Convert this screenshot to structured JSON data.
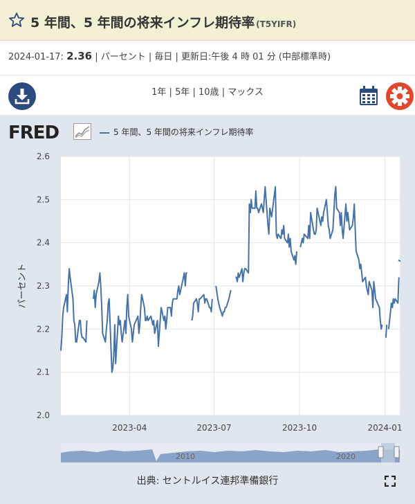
{
  "header": {
    "title": "5 年間、5 年間の将来インフレ期待率",
    "series_id": "(T5YIFR)"
  },
  "meta": {
    "date": "2024-01-17:",
    "value": "2.36",
    "rest": " | パーセント | 毎日 | 更新日:午後 4 時 01 分 (中部標準時)"
  },
  "toolbar": {
    "ranges": [
      "1年",
      "5年",
      "10歳",
      "マックス"
    ]
  },
  "chart": {
    "logo": "FRED",
    "source": "出典: セントルイス連邦準備銀行",
    "navigator_labels": [
      "2010",
      "2020"
    ],
    "colors": {
      "line": "#4572a7",
      "background": "#dfe6ee",
      "plot_bg": "#ffffff",
      "navigator_fill": "#8aa3c8"
    }
  },
  "chart_data": {
    "type": "line",
    "title": "",
    "ylabel": "パーセント",
    "xlabel": "",
    "ylim": [
      2.0,
      2.6
    ],
    "yticks": [
      "2.0",
      "2.1",
      "2.2",
      "2.3",
      "2.4",
      "2.5",
      "2.6"
    ],
    "xticks": [
      {
        "label": "2023-04",
        "date": "2023-04-01"
      },
      {
        "label": "2023-07",
        "date": "2023-07-01"
      },
      {
        "label": "2023-10",
        "date": "2023-10-01"
      },
      {
        "label": "2024-01",
        "date": "2024-01-01"
      }
    ],
    "xrange": [
      "2023-01-17",
      "2024-01-17"
    ],
    "series": [
      {
        "name": "5 年間、5 年間の将来インフレ期待率",
        "points": [
          [
            "2023-01-17",
            2.15
          ],
          [
            "2023-01-18",
            2.18
          ],
          [
            "2023-01-19",
            2.23
          ],
          [
            "2023-01-20",
            2.25
          ],
          [
            "2023-01-23",
            2.28
          ],
          [
            "2023-01-24",
            2.24
          ],
          [
            "2023-01-25",
            2.3
          ],
          [
            "2023-01-26",
            2.34
          ],
          [
            "2023-01-27",
            2.32
          ],
          [
            "2023-01-30",
            2.27
          ],
          [
            "2023-01-31",
            2.22
          ],
          [
            "2023-02-01",
            2.21
          ],
          [
            "2023-02-02",
            2.17
          ],
          [
            "2023-02-03",
            2.17
          ],
          [
            "2023-02-06",
            2.22
          ],
          [
            "2023-02-07",
            2.22
          ],
          [
            "2023-02-08",
            2.19
          ],
          [
            "2023-02-09",
            2.18
          ],
          [
            "2023-02-10",
            2.18
          ],
          [
            "2023-02-13",
            2.17
          ],
          [
            "2023-02-14",
            2.22
          ],
          [
            null,
            null
          ],
          [
            "2023-02-21",
            2.27
          ],
          [
            "2023-02-22",
            2.29
          ],
          [
            "2023-02-23",
            2.25
          ],
          [
            "2023-02-24",
            2.28
          ],
          [
            "2023-02-27",
            2.31
          ],
          [
            "2023-02-28",
            2.33
          ],
          [
            "2023-03-01",
            2.3
          ],
          [
            "2023-03-02",
            2.25
          ],
          [
            "2023-03-03",
            2.19
          ],
          [
            "2023-03-06",
            2.17
          ],
          [
            "2023-03-07",
            2.2
          ],
          [
            "2023-03-08",
            2.22
          ],
          [
            "2023-03-09",
            2.26
          ],
          [
            "2023-03-10",
            2.27
          ],
          [
            "2023-03-13",
            2.1
          ],
          [
            "2023-03-14",
            2.11
          ],
          [
            "2023-03-15",
            2.14
          ],
          [
            "2023-03-16",
            2.21
          ],
          [
            "2023-03-17",
            2.12
          ],
          [
            "2023-03-20",
            2.23
          ],
          [
            "2023-03-21",
            2.21
          ],
          [
            "2023-03-22",
            2.22
          ],
          [
            "2023-03-23",
            2.19
          ],
          [
            "2023-03-24",
            2.17
          ],
          [
            "2023-03-27",
            2.22
          ],
          [
            "2023-03-28",
            2.19
          ],
          [
            "2023-03-29",
            2.25
          ],
          [
            "2023-03-30",
            2.28
          ],
          [
            "2023-03-31",
            2.23
          ],
          [
            "2023-04-03",
            2.2
          ],
          [
            "2023-04-04",
            2.17
          ],
          [
            "2023-04-05",
            2.19
          ],
          [
            "2023-04-06",
            2.21
          ],
          [
            "2023-04-10",
            2.23
          ],
          [
            "2023-04-11",
            2.19
          ],
          [
            "2023-04-12",
            2.21
          ],
          [
            "2023-04-13",
            2.25
          ],
          [
            "2023-04-14",
            2.28
          ],
          [
            "2023-04-17",
            2.25
          ],
          [
            "2023-04-18",
            2.22
          ],
          [
            "2023-04-19",
            2.22
          ],
          [
            "2023-04-20",
            2.23
          ],
          [
            "2023-04-21",
            2.22
          ],
          [
            "2023-04-24",
            2.23
          ],
          [
            "2023-04-25",
            2.22
          ],
          [
            "2023-04-26",
            2.21
          ],
          [
            "2023-04-27",
            2.22
          ],
          [
            "2023-04-28",
            2.19
          ],
          [
            "2023-05-01",
            2.22
          ],
          [
            "2023-05-02",
            2.16
          ],
          [
            "2023-05-03",
            2.19
          ],
          [
            "2023-05-04",
            2.22
          ],
          [
            "2023-05-05",
            2.25
          ],
          [
            "2023-05-08",
            2.22
          ],
          [
            "2023-05-09",
            2.23
          ],
          [
            "2023-05-10",
            2.2
          ],
          [
            "2023-05-11",
            2.22
          ],
          [
            "2023-05-12",
            2.25
          ],
          [
            "2023-05-15",
            2.25
          ],
          [
            "2023-05-16",
            2.23
          ],
          [
            "2023-05-17",
            2.26
          ],
          [
            "2023-05-18",
            2.27
          ],
          [
            "2023-05-19",
            2.27
          ],
          [
            "2023-05-22",
            2.27
          ],
          [
            "2023-05-23",
            2.29
          ],
          [
            "2023-05-24",
            2.3
          ],
          [
            "2023-05-25",
            2.28
          ],
          [
            "2023-05-26",
            2.29
          ],
          [
            "2023-05-30",
            2.33
          ],
          [
            "2023-05-31",
            2.3
          ],
          [
            "2023-06-01",
            2.33
          ],
          [
            "2023-06-02",
            2.33
          ],
          [
            null,
            null
          ],
          [
            "2023-06-07",
            2.22
          ],
          [
            "2023-06-08",
            2.23
          ],
          [
            "2023-06-09",
            2.26
          ],
          [
            "2023-06-12",
            2.27
          ],
          [
            "2023-06-13",
            2.26
          ],
          [
            "2023-06-14",
            2.24
          ],
          [
            "2023-06-15",
            2.27
          ],
          [
            "2023-06-16",
            2.27
          ],
          [
            "2023-06-20",
            2.28
          ],
          [
            "2023-06-21",
            2.26
          ],
          [
            "2023-06-22",
            2.27
          ],
          [
            "2023-06-23",
            2.27
          ],
          [
            "2023-06-26",
            2.25
          ],
          [
            "2023-06-27",
            2.25
          ],
          [
            "2023-06-28",
            2.24
          ],
          [
            "2023-06-29",
            2.27
          ],
          [
            null,
            null
          ],
          [
            "2023-07-03",
            2.3
          ],
          [
            "2023-07-05",
            2.27
          ],
          [
            "2023-07-06",
            2.26
          ],
          [
            "2023-07-07",
            2.25
          ],
          [
            "2023-07-10",
            2.23
          ],
          [
            "2023-07-11",
            2.24
          ],
          [
            "2023-07-12",
            2.24
          ],
          [
            "2023-07-13",
            2.25
          ],
          [
            "2023-07-14",
            2.25
          ],
          [
            "2023-07-17",
            2.27
          ],
          [
            "2023-07-18",
            2.28
          ],
          [
            "2023-07-19",
            2.29
          ],
          [
            null,
            null
          ],
          [
            "2023-07-24",
            2.32
          ],
          [
            "2023-07-25",
            2.32
          ],
          [
            "2023-07-26",
            2.31
          ],
          [
            "2023-07-27",
            2.33
          ],
          [
            "2023-07-28",
            2.32
          ],
          [
            "2023-07-31",
            2.34
          ],
          [
            "2023-08-01",
            2.31
          ],
          [
            "2023-08-02",
            2.33
          ],
          [
            "2023-08-03",
            2.34
          ],
          [
            "2023-08-04",
            2.34
          ],
          [
            "2023-08-07",
            2.33
          ],
          [
            "2023-08-08",
            2.49
          ],
          [
            "2023-08-09",
            2.47
          ],
          [
            "2023-08-10",
            2.5
          ],
          [
            "2023-08-11",
            2.48
          ],
          [
            "2023-08-14",
            2.48
          ],
          [
            "2023-08-15",
            2.52
          ],
          [
            "2023-08-16",
            2.48
          ],
          [
            "2023-08-17",
            2.48
          ],
          [
            "2023-08-18",
            2.47
          ],
          [
            "2023-08-21",
            2.49
          ],
          [
            "2023-08-22",
            2.48
          ],
          [
            "2023-08-23",
            2.47
          ],
          [
            "2023-08-24",
            2.5
          ],
          [
            "2023-08-25",
            2.53
          ],
          [
            "2023-08-28",
            2.44
          ],
          [
            "2023-08-29",
            2.42
          ],
          [
            "2023-08-30",
            2.48
          ],
          [
            "2023-08-31",
            2.47
          ],
          [
            "2023-09-01",
            2.46
          ],
          [
            "2023-09-05",
            2.53
          ],
          [
            "2023-09-06",
            2.42
          ],
          [
            "2023-09-07",
            2.41
          ],
          [
            "2023-09-08",
            2.42
          ],
          [
            "2023-09-11",
            2.41
          ],
          [
            "2023-09-12",
            2.43
          ],
          [
            "2023-09-13",
            2.42
          ],
          [
            "2023-09-14",
            2.44
          ],
          [
            "2023-09-15",
            2.41
          ],
          [
            "2023-09-18",
            2.4
          ],
          [
            "2023-09-19",
            2.42
          ],
          [
            "2023-09-20",
            2.39
          ],
          [
            "2023-09-21",
            2.41
          ],
          [
            "2023-09-22",
            2.38
          ],
          [
            "2023-09-25",
            2.36
          ],
          [
            "2023-09-26",
            2.37
          ],
          [
            "2023-09-27",
            2.35
          ],
          [
            "2023-09-28",
            2.38
          ],
          [
            null,
            null
          ],
          [
            "2023-10-02",
            2.39
          ],
          [
            "2023-10-03",
            2.4
          ],
          [
            "2023-10-04",
            2.41
          ],
          [
            "2023-10-05",
            2.4
          ],
          [
            "2023-10-06",
            2.42
          ],
          [
            "2023-10-10",
            2.41
          ],
          [
            "2023-10-11",
            2.44
          ],
          [
            "2023-10-12",
            2.41
          ],
          [
            "2023-10-13",
            2.47
          ],
          [
            "2023-10-16",
            2.43
          ],
          [
            "2023-10-17",
            2.42
          ],
          [
            "2023-10-18",
            2.42
          ],
          [
            "2023-10-19",
            2.43
          ],
          [
            "2023-10-20",
            2.48
          ],
          [
            "2023-10-23",
            2.45
          ],
          [
            "2023-10-24",
            2.44
          ],
          [
            "2023-10-25",
            2.46
          ],
          [
            "2023-10-26",
            2.45
          ],
          [
            "2023-10-27",
            2.47
          ],
          [
            "2023-10-30",
            2.5
          ],
          [
            "2023-10-31",
            2.47
          ],
          [
            "2023-11-01",
            2.44
          ],
          [
            "2023-11-02",
            2.43
          ],
          [
            "2023-11-03",
            2.41
          ],
          [
            "2023-11-06",
            2.43
          ],
          [
            "2023-11-07",
            2.47
          ],
          [
            "2023-11-08",
            2.51
          ],
          [
            "2023-11-09",
            2.53
          ],
          [
            "2023-11-10",
            2.48
          ],
          [
            "2023-11-13",
            2.47
          ],
          [
            "2023-11-14",
            2.44
          ],
          [
            "2023-11-15",
            2.47
          ],
          [
            "2023-11-16",
            2.43
          ],
          [
            "2023-11-17",
            2.41
          ],
          [
            "2023-11-20",
            2.49
          ],
          [
            "2023-11-21",
            2.45
          ],
          [
            "2023-11-22",
            2.47
          ],
          [
            "2023-11-24",
            2.43
          ],
          [
            "2023-11-27",
            2.44
          ],
          [
            "2023-11-28",
            2.46
          ],
          [
            "2023-11-29",
            2.49
          ],
          [
            "2023-11-30",
            2.43
          ],
          [
            "2023-12-01",
            2.38
          ],
          [
            "2023-12-04",
            2.36
          ],
          [
            "2023-12-05",
            2.34
          ],
          [
            "2023-12-06",
            2.35
          ],
          [
            "2023-12-07",
            2.33
          ],
          [
            "2023-12-08",
            2.31
          ],
          [
            "2023-12-11",
            2.32
          ],
          [
            "2023-12-12",
            2.3
          ],
          [
            "2023-12-13",
            2.29
          ],
          [
            "2023-12-14",
            2.28
          ],
          [
            "2023-12-15",
            2.31
          ],
          [
            "2023-12-18",
            2.29
          ],
          [
            "2023-12-19",
            2.25
          ],
          [
            "2023-12-20",
            2.31
          ],
          [
            "2023-12-21",
            2.29
          ],
          [
            "2023-12-22",
            2.27
          ],
          [
            "2023-12-26",
            2.25
          ],
          [
            "2023-12-27",
            2.22
          ],
          [
            "2023-12-28",
            2.2
          ],
          [
            "2023-12-29",
            2.21
          ],
          [
            null,
            null
          ],
          [
            "2024-01-02",
            2.18
          ],
          [
            "2024-01-03",
            2.21
          ],
          [
            null,
            null
          ],
          [
            "2024-01-05",
            2.2
          ],
          [
            "2024-01-08",
            2.26
          ],
          [
            "2024-01-09",
            2.25
          ],
          [
            "2024-01-10",
            2.27
          ],
          [
            "2024-01-11",
            2.26
          ],
          [
            "2024-01-12",
            2.27
          ],
          [
            "2024-01-15",
            2.26
          ],
          [
            "2024-01-16",
            2.32
          ],
          [
            null,
            null
          ],
          [
            "2024-01-17",
            2.36
          ]
        ]
      }
    ]
  }
}
